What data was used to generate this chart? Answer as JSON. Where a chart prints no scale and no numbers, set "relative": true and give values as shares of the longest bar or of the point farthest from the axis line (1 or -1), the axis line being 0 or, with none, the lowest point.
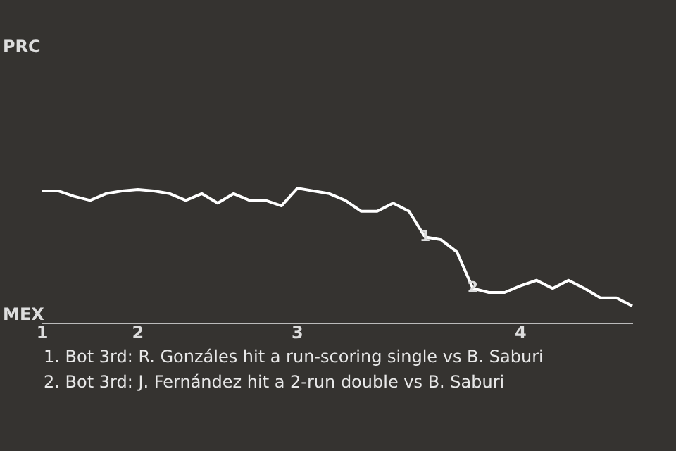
{
  "chart_data": {
    "type": "line",
    "categories": [
      "1",
      null,
      null,
      null,
      null,
      null,
      "2",
      null,
      null,
      null,
      null,
      null,
      null,
      null,
      null,
      null,
      "3",
      null,
      null,
      null,
      null,
      null,
      null,
      null,
      null,
      null,
      null,
      null,
      null,
      null,
      "4",
      null,
      null,
      null,
      null,
      null,
      null,
      null
    ],
    "relative": true,
    "series": [
      {
        "color": "#ffffff",
        "values": [
          0.98,
          0.98,
          0.94,
          0.91,
          0.96,
          0.98,
          0.99,
          0.98,
          0.96,
          0.91,
          0.96,
          0.89,
          0.96,
          0.91,
          0.91,
          0.87,
          1,
          0.98,
          0.96,
          0.91,
          0.83,
          0.83,
          0.89,
          0.83,
          0.64,
          0.62,
          0.53,
          0.26,
          0.23,
          0.23,
          0.28,
          0.32,
          0.26,
          0.32,
          0.26,
          0.19,
          0.19,
          0.13
        ]
      }
    ],
    "legend": false,
    "marker": "none",
    "line_style": "solid",
    "annotations": [
      "PRC",
      "MEX",
      {
        "text": "1",
        "y": 0.64
      },
      {
        "text": "2",
        "y": 0.26
      },
      "1. Bot 3rd: R. Gonzáles hit a run-scoring single vs B. Saburi",
      "2. Bot 3rd: J. Fernández hit a 2-run double vs B. Saburi"
    ]
  }
}
